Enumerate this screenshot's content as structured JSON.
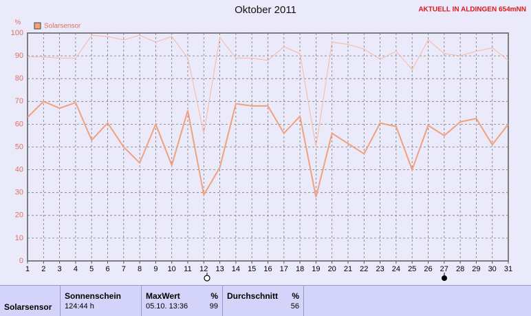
{
  "chart_data": {
    "type": "line",
    "title": "Oktober 2011",
    "subtitle": "AKTUELL IN ALDINGEN 654mNN",
    "y_label": "%",
    "x": [
      1,
      2,
      3,
      4,
      5,
      6,
      7,
      8,
      9,
      10,
      11,
      12,
      13,
      14,
      15,
      16,
      17,
      18,
      19,
      20,
      21,
      22,
      23,
      24,
      25,
      26,
      27,
      28,
      29,
      30,
      31
    ],
    "series": [
      {
        "name": "Solarsensor",
        "color": "#f2a07c",
        "values": [
          63,
          70,
          67,
          69.5,
          53,
          60.5,
          50,
          43,
          60,
          42,
          66,
          29,
          41,
          69,
          68,
          68,
          56,
          63.5,
          28,
          56,
          51.5,
          47,
          60.5,
          59,
          40,
          59.5,
          55,
          61,
          62.5,
          51,
          60
        ]
      },
      {
        "color": "#f8b89c",
        "values": [
          89.5,
          89.5,
          89,
          89,
          99,
          98.5,
          97,
          99,
          96,
          98.5,
          89,
          56,
          98,
          89,
          89,
          88,
          94,
          91,
          50,
          96,
          95,
          93,
          88.5,
          92,
          84,
          97,
          91,
          90,
          92,
          93.5,
          88
        ]
      }
    ],
    "xlim": [
      1,
      31
    ],
    "xticks": [
      1,
      2,
      3,
      4,
      5,
      6,
      7,
      8,
      9,
      10,
      11,
      12,
      13,
      14,
      15,
      16,
      17,
      18,
      19,
      20,
      21,
      22,
      23,
      24,
      25,
      26,
      27,
      28,
      29,
      30,
      31
    ],
    "ylim": [
      0,
      100
    ],
    "yticks": [
      0,
      10,
      20,
      30,
      40,
      50,
      60,
      70,
      80,
      90,
      100
    ],
    "grid": true
  },
  "table": {
    "header": [
      "Sonnenschein",
      "MaxWert",
      "%",
      "Durchschnitt",
      "%"
    ],
    "rows": [
      [
        "Solarsensor",
        "124:44 h",
        "05.10. 13:36",
        99,
        56
      ]
    ]
  }
}
